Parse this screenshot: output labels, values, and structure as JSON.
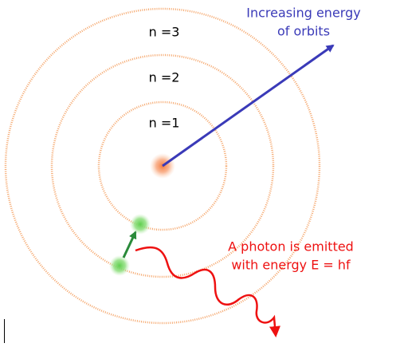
{
  "orbit_labels": [
    "n =3",
    "n =2",
    "n =1"
  ],
  "energy_note": [
    "Increasing energy",
    "of orbits"
  ],
  "photon_note": [
    "A photon is emitted",
    "with energy E = hf"
  ]
}
